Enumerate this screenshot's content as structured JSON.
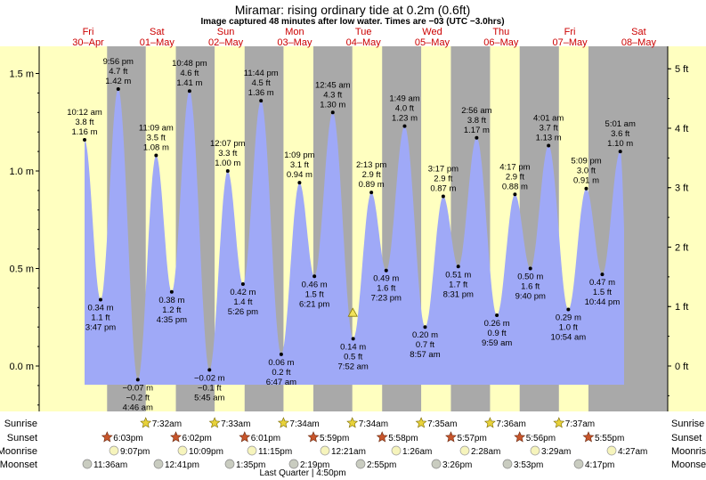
{
  "title": "Miramar: rising  ordinary tide at 0.2m (0.6ft)",
  "subtitle": "Image captured 48 minutes after low water. Times are −03 (UTC −3.0hrs)",
  "days": [
    {
      "name": "Fri",
      "date": "30–Apr"
    },
    {
      "name": "Sat",
      "date": "01–May"
    },
    {
      "name": "Sun",
      "date": "02–May"
    },
    {
      "name": "Mon",
      "date": "03–May"
    },
    {
      "name": "Tue",
      "date": "04–May"
    },
    {
      "name": "Wed",
      "date": "05–May"
    },
    {
      "name": "Thu",
      "date": "06–May"
    },
    {
      "name": "Fri",
      "date": "07–May"
    },
    {
      "name": "Sat",
      "date": "08–May"
    }
  ],
  "chart_data": {
    "type": "area",
    "y_left_unit": "m",
    "y_right_unit": "ft",
    "ylim_m": [
      -0.25,
      1.6
    ],
    "y_ticks_m": [
      "0.0 m",
      "0.5 m",
      "1.0 m",
      "1.5 m"
    ],
    "y_ticks_ft": [
      "0 ft",
      "1 ft",
      "2 ft",
      "3 ft",
      "4 ft",
      "5 ft"
    ],
    "tides": [
      {
        "time": "10:12 am",
        "ft": "3.8 ft",
        "m": 1.16,
        "label": "1.16 m",
        "type": "high"
      },
      {
        "time": "3:47 pm",
        "ft": "1.1 ft",
        "m": 0.34,
        "label": "0.34 m",
        "type": "low"
      },
      {
        "time": "9:56 pm",
        "ft": "4.7 ft",
        "m": 1.42,
        "label": "1.42 m",
        "type": "high"
      },
      {
        "time": "4:46 am",
        "ft": "−0.2 ft",
        "m": -0.07,
        "label": "−0.07 m",
        "type": "low"
      },
      {
        "time": "11:09 am",
        "ft": "3.5 ft",
        "m": 1.08,
        "label": "1.08 m",
        "type": "high"
      },
      {
        "time": "4:35 pm",
        "ft": "1.2 ft",
        "m": 0.38,
        "label": "0.38 m",
        "type": "low"
      },
      {
        "time": "10:48 pm",
        "ft": "4.6 ft",
        "m": 1.41,
        "label": "1.41 m",
        "type": "high"
      },
      {
        "time": "5:45 am",
        "ft": "−0.1 ft",
        "m": -0.02,
        "label": "−0.02 m",
        "type": "low"
      },
      {
        "time": "12:07 pm",
        "ft": "3.3 ft",
        "m": 1.0,
        "label": "1.00 m",
        "type": "high"
      },
      {
        "time": "5:26 pm",
        "ft": "1.4 ft",
        "m": 0.42,
        "label": "0.42 m",
        "type": "low"
      },
      {
        "time": "11:44 pm",
        "ft": "4.5 ft",
        "m": 1.36,
        "label": "1.36 m",
        "type": "high"
      },
      {
        "time": "6:47 am",
        "ft": "0.2 ft",
        "m": 0.06,
        "label": "0.06 m",
        "type": "low"
      },
      {
        "time": "1:09 pm",
        "ft": "3.1 ft",
        "m": 0.94,
        "label": "0.94 m",
        "type": "high"
      },
      {
        "time": "6:21 pm",
        "ft": "1.5 ft",
        "m": 0.46,
        "label": "0.46 m",
        "type": "low"
      },
      {
        "time": "12:45 am",
        "ft": "4.3 ft",
        "m": 1.3,
        "label": "1.30 m",
        "type": "high"
      },
      {
        "time": "7:52 am",
        "ft": "0.5 ft",
        "m": 0.14,
        "label": "0.14 m",
        "type": "low"
      },
      {
        "time": "2:13 pm",
        "ft": "2.9 ft",
        "m": 0.89,
        "label": "0.89 m",
        "type": "high"
      },
      {
        "time": "7:23 pm",
        "ft": "1.6 ft",
        "m": 0.49,
        "label": "0.49 m",
        "type": "low"
      },
      {
        "time": "1:49 am",
        "ft": "4.0 ft",
        "m": 1.23,
        "label": "1.23 m",
        "type": "high"
      },
      {
        "time": "8:57 am",
        "ft": "0.7 ft",
        "m": 0.2,
        "label": "0.20 m",
        "type": "low"
      },
      {
        "time": "3:17 pm",
        "ft": "2.9 ft",
        "m": 0.87,
        "label": "0.87 m",
        "type": "high"
      },
      {
        "time": "8:31 pm",
        "ft": "1.7 ft",
        "m": 0.51,
        "label": "0.51 m",
        "type": "low"
      },
      {
        "time": "2:56 am",
        "ft": "3.8 ft",
        "m": 1.17,
        "label": "1.17 m",
        "type": "high"
      },
      {
        "time": "9:59 am",
        "ft": "0.9 ft",
        "m": 0.26,
        "label": "0.26 m",
        "type": "low"
      },
      {
        "time": "4:17 pm",
        "ft": "2.9 ft",
        "m": 0.88,
        "label": "0.88 m",
        "type": "high"
      },
      {
        "time": "9:40 pm",
        "ft": "1.6 ft",
        "m": 0.5,
        "label": "0.50 m",
        "type": "low"
      },
      {
        "time": "4:01 am",
        "ft": "3.7 ft",
        "m": 1.13,
        "label": "1.13 m",
        "type": "high"
      },
      {
        "time": "10:54 am",
        "ft": "1.0 ft",
        "m": 0.29,
        "label": "0.29 m",
        "type": "low"
      },
      {
        "time": "5:09 pm",
        "ft": "3.0 ft",
        "m": 0.91,
        "label": "0.91 m",
        "type": "high"
      },
      {
        "time": "10:44 pm",
        "ft": "1.5 ft",
        "m": 0.47,
        "label": "0.47 m",
        "type": "low"
      },
      {
        "time": "5:01 am",
        "ft": "3.6 ft",
        "m": 1.1,
        "label": "1.10 m",
        "type": "high"
      }
    ],
    "current_level_m": 0.2,
    "current_time": "8:40 am, 04–May",
    "colors": {
      "water": "#9fa9f7",
      "day": "#ffffc0",
      "night": "#a9a9a9",
      "sun": "#e8d23a",
      "sunset": "#c8552b",
      "moon": "#f6f4bc",
      "moonset": "#c9ccc0",
      "day_label": "#cc0000"
    }
  },
  "rows": {
    "sunrise_label": "Sunrise",
    "sunset_label": "Sunset",
    "moonrise_label": "Moonrise",
    "moonset_label": "Moonset",
    "sunrise": [
      "7:32am",
      "7:33am",
      "7:34am",
      "7:34am",
      "7:35am",
      "7:36am",
      "7:37am"
    ],
    "sunset": [
      "6:03pm",
      "6:02pm",
      "6:01pm",
      "5:59pm",
      "5:58pm",
      "5:57pm",
      "5:56pm",
      "5:55pm"
    ],
    "moonrise": [
      "9:07pm",
      "10:09pm",
      "11:15pm",
      "12:21am",
      "1:26am",
      "2:28am",
      "3:29am",
      "4:27am"
    ],
    "moonset": [
      "11:36am",
      "12:41pm",
      "1:35pm",
      "2:19pm",
      "2:55pm",
      "3:26pm",
      "3:53pm",
      "4:17pm"
    ],
    "moon_phase": "Last Quarter | 4:50pm"
  }
}
